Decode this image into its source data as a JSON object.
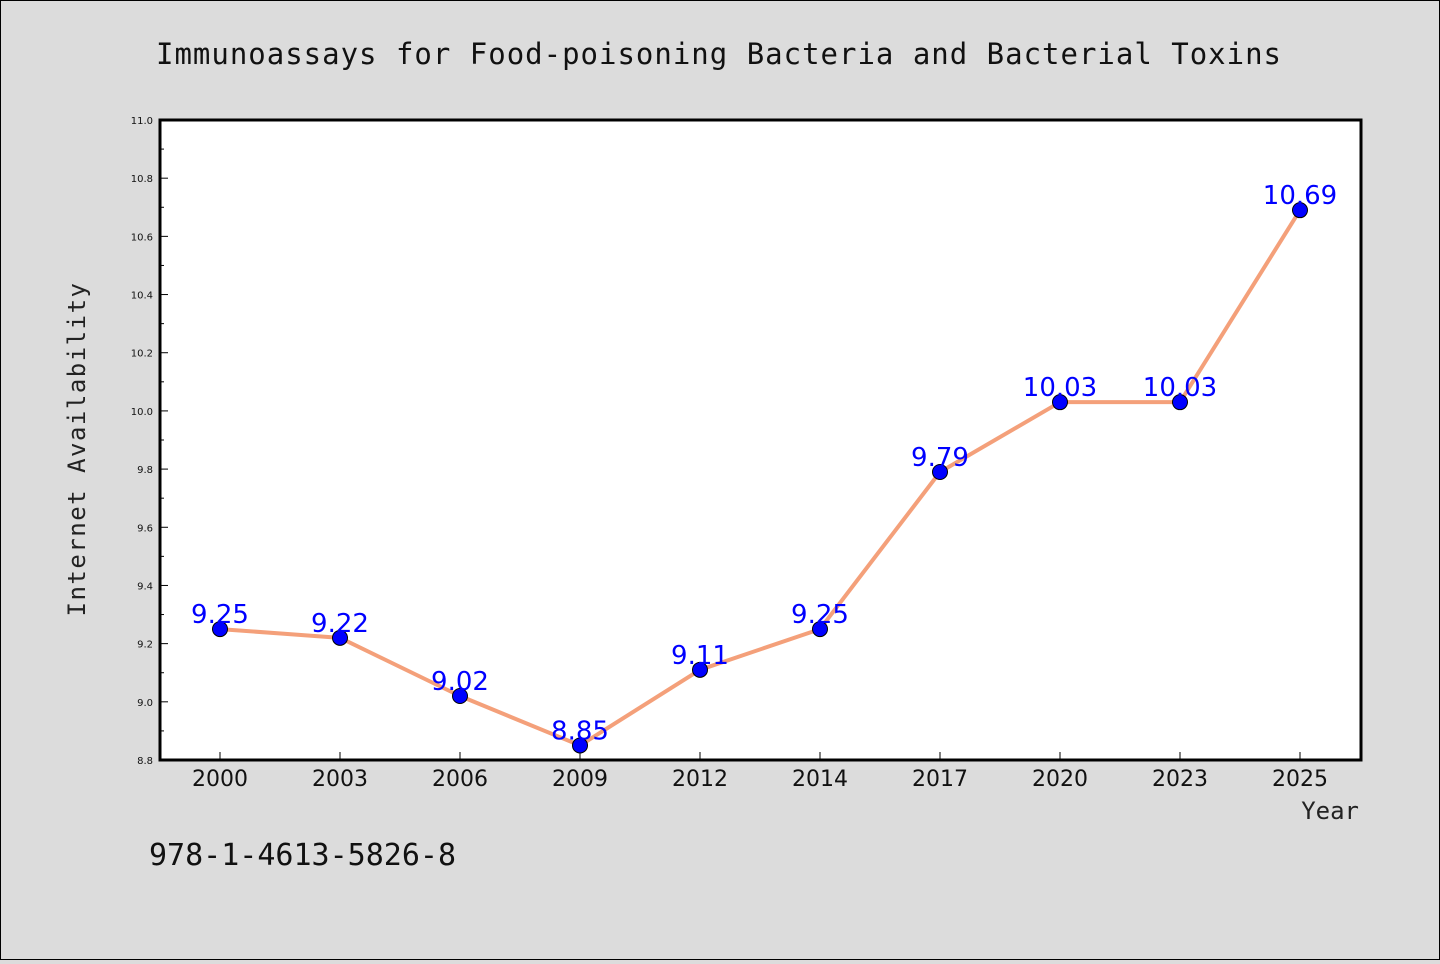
{
  "chart_data": {
    "type": "line",
    "title": "Immunoassays for Food-poisoning Bacteria and Bacterial Toxins",
    "xlabel": "Year",
    "ylabel": "Internet Availability",
    "categories": [
      "2000",
      "2003",
      "2006",
      "2009",
      "2012",
      "2014",
      "2017",
      "2020",
      "2023",
      "2025"
    ],
    "series": [
      {
        "values": [
          9.25,
          9.22,
          9.02,
          8.85,
          9.11,
          9.25,
          9.79,
          10.03,
          10.03,
          10.69
        ],
        "labels": [
          "9.25",
          "9.22",
          "9.02",
          "8.85",
          "9.11",
          "9.25",
          "9.79",
          "10.03",
          "10.03",
          "10.69"
        ],
        "line_color": "#f4a07a",
        "marker_color": "#0000ff"
      }
    ],
    "ylim": [
      8.8,
      11.0
    ],
    "yticks": [
      "8.8",
      "9.0",
      "9.2",
      "9.4",
      "9.6",
      "9.8",
      "10.0",
      "10.2",
      "10.4",
      "10.6",
      "10.8",
      "11.0"
    ],
    "grid": false,
    "legend": "none",
    "plot_background": "#ffffff",
    "page_background": "#dcdcdc"
  },
  "footer": {
    "isbn": "978-1-4613-5826-8"
  }
}
